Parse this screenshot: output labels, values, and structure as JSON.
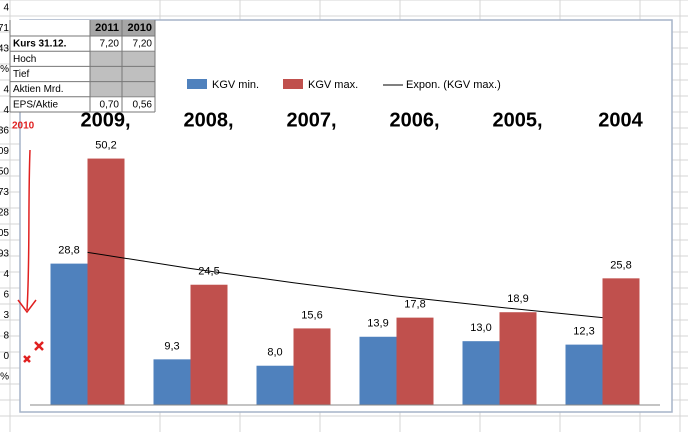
{
  "chart_data": {
    "type": "bar",
    "categories": [
      "2009,",
      "2008,",
      "2007,",
      "2006,",
      "2005,",
      "2004"
    ],
    "series": [
      {
        "name": "KGV min.",
        "color": "#4f81bd",
        "values": [
          28.8,
          9.3,
          8.0,
          13.9,
          13.0,
          12.3
        ],
        "value_labels": [
          "28,8",
          "9,3",
          "8,0",
          "13,9",
          "13,0",
          "12,3"
        ]
      },
      {
        "name": "KGV max.",
        "color": "#c0504d",
        "values": [
          50.2,
          24.5,
          15.6,
          17.8,
          18.9,
          25.8
        ],
        "value_labels": [
          "50,2",
          "24,5",
          "15,6",
          "17,8",
          "18,9",
          "25,8"
        ]
      }
    ],
    "trendline": {
      "name": "Expon. (KGV max.)",
      "color": "#000000",
      "values": [
        31.1,
        27.8,
        24.9,
        22.2,
        19.9,
        17.8
      ]
    },
    "ylim": [
      0,
      55
    ],
    "grid": false
  },
  "table": {
    "header": [
      "2011",
      "2010"
    ],
    "rows": [
      [
        "Kurs 31.12.",
        "7,20",
        "7,20"
      ],
      [
        "Hoch",
        "",
        ""
      ],
      [
        "Tief",
        "",
        ""
      ],
      [
        "Aktien Mrd.",
        "",
        ""
      ],
      [
        "EPS/Aktie",
        "0,70",
        "0,56"
      ]
    ]
  },
  "annotation": "2010",
  "left_edge": [
    "4",
    "71",
    "43",
    "%",
    "4",
    "4",
    "36",
    "09",
    "50",
    "73",
    "28",
    "05",
    "93",
    "4",
    "6",
    "3",
    "8",
    "0",
    "%"
  ]
}
